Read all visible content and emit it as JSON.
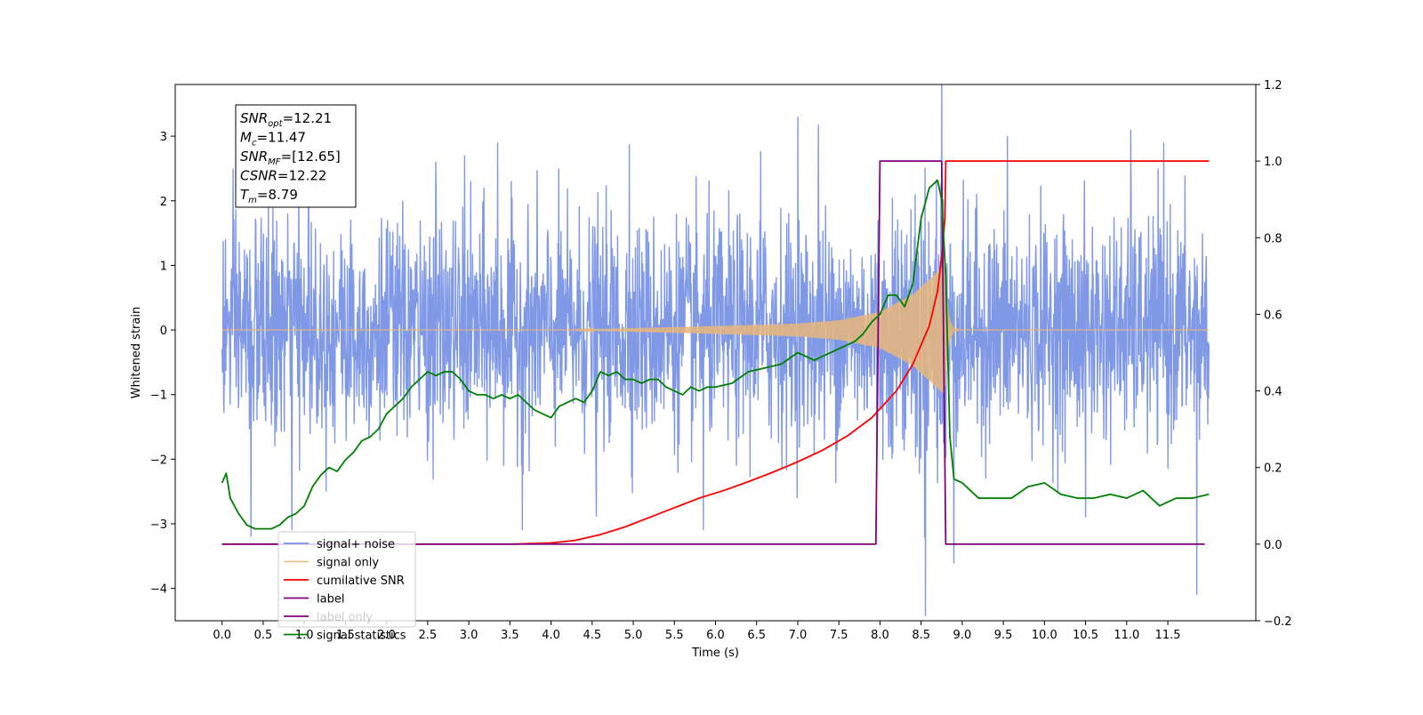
{
  "chart_data": {
    "type": "line",
    "xlabel": "Time (s)",
    "ylabel": "Whitened strain",
    "xlim": [
      -0.57,
      12.57
    ],
    "ylim_left": [
      -4.5,
      3.8
    ],
    "ylim_right": [
      -0.2,
      1.2
    ],
    "x_ticks": [
      0.0,
      0.5,
      1.0,
      1.5,
      2.0,
      2.5,
      3.0,
      3.5,
      4.0,
      4.5,
      5.0,
      5.5,
      6.0,
      6.5,
      7.0,
      7.5,
      8.0,
      8.5,
      9.0,
      9.5,
      10.0,
      10.5,
      11.0,
      11.5
    ],
    "x_tick_labels": [
      "0.0",
      "0.5",
      "1.0",
      "1.5",
      "2.0",
      "2.5",
      "3.0",
      "3.5",
      "4.0",
      "4.5",
      "5.0",
      "5.5",
      "6.0",
      "6.5",
      "7.0",
      "7.5",
      "8.0",
      "8.5",
      "9.0",
      "9.5",
      "10.0",
      "10.5",
      "11.0",
      "11.5"
    ],
    "y_left_ticks": [
      3,
      2,
      1,
      0,
      -1,
      -2,
      -3,
      -4
    ],
    "y_left_tick_labels": [
      "3",
      "2",
      "1",
      "0",
      "−1",
      "−2",
      "−3",
      "−4"
    ],
    "y_right_ticks": [
      1.2,
      1.0,
      0.8,
      0.6,
      0.4,
      0.2,
      0.0,
      -0.2
    ],
    "y_right_tick_labels": [
      "1.2",
      "1.0",
      "0.8",
      "0.6",
      "0.4",
      "0.2",
      "0.0",
      "−0.2"
    ],
    "grid": false,
    "legend_position": "lower-left",
    "noise": {
      "x_range": [
        0.0,
        12.0
      ],
      "sigma": 0.85,
      "spikes": [
        {
          "x": 1.05,
          "y": 2.7
        },
        {
          "x": 2.6,
          "y": 2.6
        },
        {
          "x": 2.95,
          "y": 2.7
        },
        {
          "x": 3.35,
          "y": 2.9
        },
        {
          "x": 4.95,
          "y": 2.9
        },
        {
          "x": 6.55,
          "y": 2.85
        },
        {
          "x": 7.0,
          "y": 3.4
        },
        {
          "x": 7.25,
          "y": 3.3
        },
        {
          "x": 8.75,
          "y": 3.25
        },
        {
          "x": 9.55,
          "y": 3.0
        },
        {
          "x": 11.05,
          "y": 3.1
        },
        {
          "x": 11.45,
          "y": 2.9
        },
        {
          "x": 0.35,
          "y": -3.2
        },
        {
          "x": 0.85,
          "y": -3.1
        },
        {
          "x": 3.65,
          "y": -3.1
        },
        {
          "x": 4.55,
          "y": -2.9
        },
        {
          "x": 5.85,
          "y": -3.15
        },
        {
          "x": 8.55,
          "y": -3.7
        },
        {
          "x": 8.9,
          "y": -3.65
        },
        {
          "x": 10.5,
          "y": -2.9
        },
        {
          "x": 11.85,
          "y": -4.1
        }
      ]
    },
    "chirp": {
      "start": 4.3,
      "merger": 8.79,
      "amplitudes": [
        [
          4.3,
          0.005
        ],
        [
          6.0,
          0.06
        ],
        [
          7.0,
          0.1
        ],
        [
          7.5,
          0.15
        ],
        [
          8.0,
          0.28
        ],
        [
          8.4,
          0.55
        ],
        [
          8.79,
          1.0
        ]
      ],
      "ringdown_end": 8.95
    },
    "series": [
      {
        "name": "signal+ noise",
        "color": "#7994e6",
        "axis": "left",
        "kind": "noise"
      },
      {
        "name": "signal only",
        "color": "#e8b67a",
        "axis": "left",
        "kind": "chirp"
      },
      {
        "name": "cumilative SNR",
        "color": "#ff0000",
        "axis": "right",
        "x": [
          0.0,
          3.5,
          4.0,
          4.3,
          4.6,
          4.9,
          5.2,
          5.5,
          5.8,
          6.1,
          6.4,
          6.7,
          7.0,
          7.3,
          7.6,
          7.9,
          8.2,
          8.4,
          8.6,
          8.7,
          8.75,
          8.79,
          8.8,
          12.0
        ],
        "values": [
          0.0,
          0.0,
          0.003,
          0.01,
          0.025,
          0.045,
          0.07,
          0.095,
          0.12,
          0.14,
          0.163,
          0.188,
          0.215,
          0.245,
          0.282,
          0.33,
          0.4,
          0.47,
          0.57,
          0.66,
          0.75,
          0.85,
          1.0,
          1.0
        ]
      },
      {
        "name": "label",
        "color": "#800080",
        "axis": "right",
        "x": [
          0.0,
          7.95,
          8.0,
          8.75,
          8.8,
          11.95
        ],
        "values": [
          0.0,
          0.0,
          1.0,
          1.0,
          0.0,
          0.0
        ]
      },
      {
        "name": "label only",
        "color": "#800080",
        "axis": "right",
        "hidden": true,
        "x": [],
        "values": []
      },
      {
        "name": "signal statistics",
        "color": "#008000",
        "axis": "right",
        "x": [
          0.0,
          0.05,
          0.1,
          0.2,
          0.3,
          0.4,
          0.5,
          0.6,
          0.7,
          0.8,
          0.9,
          1.0,
          1.1,
          1.2,
          1.3,
          1.4,
          1.5,
          1.6,
          1.7,
          1.8,
          1.9,
          2.0,
          2.1,
          2.2,
          2.3,
          2.4,
          2.5,
          2.6,
          2.7,
          2.8,
          2.9,
          3.0,
          3.1,
          3.2,
          3.3,
          3.4,
          3.5,
          3.6,
          3.7,
          3.8,
          3.9,
          4.0,
          4.1,
          4.2,
          4.3,
          4.4,
          4.5,
          4.6,
          4.7,
          4.8,
          4.9,
          5.0,
          5.1,
          5.2,
          5.3,
          5.4,
          5.5,
          5.6,
          5.7,
          5.8,
          5.9,
          6.0,
          6.2,
          6.4,
          6.6,
          6.8,
          7.0,
          7.2,
          7.4,
          7.5,
          7.6,
          7.7,
          7.8,
          7.9,
          8.0,
          8.1,
          8.2,
          8.3,
          8.4,
          8.5,
          8.6,
          8.7,
          8.75,
          8.8,
          8.85,
          8.9,
          9.0,
          9.2,
          9.4,
          9.6,
          9.8,
          10.0,
          10.2,
          10.4,
          10.6,
          10.8,
          11.0,
          11.2,
          11.4,
          11.6,
          11.8,
          12.0
        ],
        "values": [
          0.16,
          0.185,
          0.12,
          0.08,
          0.05,
          0.04,
          0.04,
          0.04,
          0.05,
          0.07,
          0.08,
          0.1,
          0.15,
          0.18,
          0.2,
          0.19,
          0.22,
          0.24,
          0.27,
          0.28,
          0.3,
          0.34,
          0.36,
          0.38,
          0.41,
          0.43,
          0.45,
          0.44,
          0.45,
          0.45,
          0.43,
          0.4,
          0.39,
          0.39,
          0.38,
          0.39,
          0.38,
          0.39,
          0.37,
          0.35,
          0.34,
          0.33,
          0.36,
          0.37,
          0.38,
          0.37,
          0.4,
          0.45,
          0.44,
          0.45,
          0.43,
          0.43,
          0.42,
          0.43,
          0.43,
          0.41,
          0.4,
          0.39,
          0.41,
          0.4,
          0.41,
          0.41,
          0.42,
          0.45,
          0.46,
          0.47,
          0.5,
          0.48,
          0.5,
          0.51,
          0.52,
          0.53,
          0.55,
          0.58,
          0.6,
          0.65,
          0.65,
          0.62,
          0.68,
          0.85,
          0.93,
          0.95,
          0.9,
          0.7,
          0.28,
          0.17,
          0.16,
          0.12,
          0.12,
          0.12,
          0.15,
          0.16,
          0.13,
          0.12,
          0.12,
          0.13,
          0.12,
          0.14,
          0.1,
          0.12,
          0.12,
          0.13
        ]
      }
    ],
    "annotations": [
      {
        "lines": [
          {
            "base": "SNR",
            "sub": "opt",
            "rest": "=12.21"
          },
          {
            "base": "M",
            "sub": "c",
            "rest": "=11.47"
          },
          {
            "base": "SNR",
            "sub": "MF",
            "rest": "=[12.65]"
          },
          {
            "base": "CSNR",
            "sub": "",
            "rest": "=12.22"
          },
          {
            "base": "T",
            "sub": "m",
            "rest": "=8.79"
          }
        ]
      }
    ]
  }
}
